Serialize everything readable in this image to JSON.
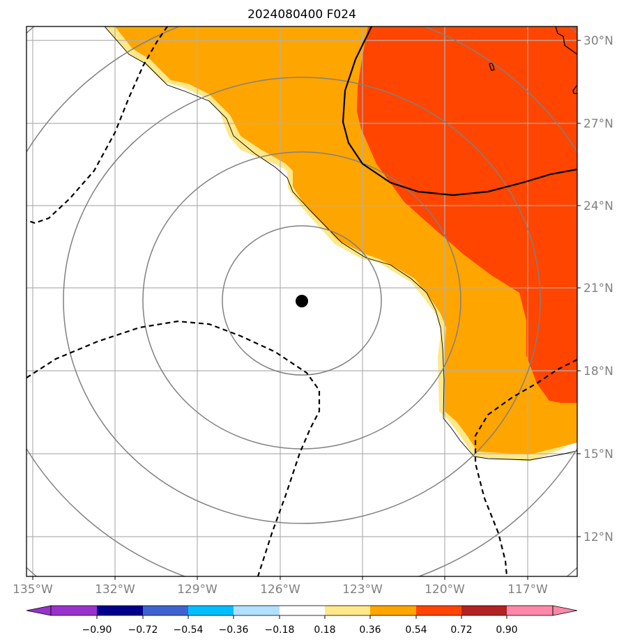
{
  "title": "2024080400 F024",
  "lon_ticks": [
    "135°W",
    "132°W",
    "129°W",
    "126°W",
    "123°W",
    "120°W",
    "117°W"
  ],
  "lat_ticks": [
    "30°N",
    "27°N",
    "24°N",
    "21°N",
    "18°N",
    "15°N",
    "12°N"
  ],
  "extent": {
    "lon_min": -135,
    "lon_max": -115,
    "lat_min": 10.5,
    "lat_max": 30.5
  },
  "storm_center": {
    "lon": -125,
    "lat": 20.5
  },
  "range_rings_note": "",
  "colorbar": {
    "labels": [
      "−0.90",
      "−0.72",
      "−0.54",
      "−0.36",
      "−0.18",
      "0.18",
      "0.36",
      "0.54",
      "0.72",
      "0.90"
    ],
    "colors": [
      "#9932cc",
      "#00008b",
      "#3e63d1",
      "#00bfff",
      "#b2e0ff",
      "#ffffff",
      "#ffe88a",
      "#ffa500",
      "#ff4500",
      "#b22222",
      "#ff88aa"
    ]
  },
  "fill_colors": {
    "light_yellow": "#ffe88a",
    "orange": "#ffa500",
    "red_orange": "#ff4500"
  },
  "icons": {
    "storm_center": "storm-center-dot-icon",
    "colorbar_min": "arrow-left-icon",
    "colorbar_max": "arrow-right-icon"
  }
}
